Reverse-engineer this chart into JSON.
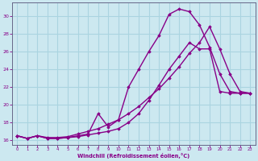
{
  "xlabel": "Windchill (Refroidissement éolien,°C)",
  "background_color": "#cce8f0",
  "grid_color": "#aad4e0",
  "line_color": "#880088",
  "xlim": [
    -0.5,
    23.5
  ],
  "ylim": [
    15.5,
    31.5
  ],
  "xticks": [
    0,
    1,
    2,
    3,
    4,
    5,
    6,
    7,
    8,
    9,
    10,
    11,
    12,
    13,
    14,
    15,
    16,
    17,
    18,
    19,
    20,
    21,
    22,
    23
  ],
  "yticks": [
    16,
    18,
    20,
    22,
    24,
    26,
    28,
    30
  ],
  "curve1_x": [
    0,
    1,
    2,
    3,
    4,
    5,
    6,
    7,
    8,
    9,
    10,
    11,
    12,
    13,
    14,
    15,
    16,
    17,
    18,
    19,
    20,
    21,
    22,
    23
  ],
  "curve1_y": [
    16.5,
    16.2,
    16.5,
    16.2,
    16.2,
    16.3,
    16.4,
    16.6,
    16.8,
    17.0,
    17.3,
    18.0,
    19.0,
    20.5,
    22.2,
    24.0,
    25.5,
    27.0,
    26.3,
    26.3,
    21.5,
    21.3,
    21.3,
    21.3
  ],
  "curve2_x": [
    0,
    1,
    2,
    3,
    4,
    5,
    6,
    7,
    8,
    9,
    10,
    11,
    12,
    13,
    14,
    15,
    16,
    17,
    18,
    19,
    20,
    21,
    22,
    23
  ],
  "curve2_y": [
    16.5,
    16.2,
    16.5,
    16.2,
    16.2,
    16.3,
    16.5,
    16.7,
    19.0,
    17.5,
    18.3,
    22.0,
    24.0,
    26.0,
    27.8,
    30.2,
    30.8,
    30.5,
    29.0,
    26.5,
    23.5,
    21.5,
    21.3,
    21.3
  ],
  "curve3_x": [
    0,
    1,
    2,
    3,
    4,
    5,
    6,
    7,
    8,
    9,
    10,
    11,
    12,
    13,
    14,
    15,
    16,
    17,
    18,
    19,
    20,
    21,
    22,
    23
  ],
  "curve3_y": [
    16.5,
    16.2,
    16.5,
    16.3,
    16.3,
    16.4,
    16.7,
    17.0,
    17.3,
    17.8,
    18.3,
    19.0,
    19.8,
    20.8,
    21.8,
    23.0,
    24.3,
    25.8,
    27.0,
    28.8,
    26.3,
    23.5,
    21.5,
    21.3
  ]
}
